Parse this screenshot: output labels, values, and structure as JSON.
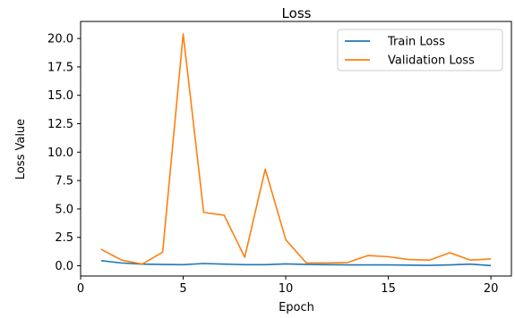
{
  "chart_data": {
    "type": "line",
    "title": "Loss",
    "xlabel": "Epoch",
    "ylabel": "Loss Value",
    "xlim": [
      0,
      21
    ],
    "ylim": [
      -0.9,
      21.5
    ],
    "xticks": [
      0,
      5,
      10,
      15,
      20
    ],
    "yticks": [
      0.0,
      2.5,
      5.0,
      7.5,
      10.0,
      12.5,
      15.0,
      17.5,
      20.0
    ],
    "xtick_labels": [
      "0",
      "5",
      "10",
      "15",
      "20"
    ],
    "ytick_labels": [
      "0.0",
      "2.5",
      "5.0",
      "7.5",
      "10.0",
      "12.5",
      "15.0",
      "17.5",
      "20.0"
    ],
    "grid": false,
    "legend_position": "top-right",
    "x": [
      1,
      2,
      3,
      4,
      5,
      6,
      7,
      8,
      9,
      10,
      11,
      12,
      13,
      14,
      15,
      16,
      17,
      18,
      19,
      20
    ],
    "series": [
      {
        "name": "Train Loss",
        "color": "#1f77b4",
        "values": [
          0.45,
          0.25,
          0.15,
          0.12,
          0.1,
          0.2,
          0.15,
          0.1,
          0.1,
          0.17,
          0.12,
          0.1,
          0.08,
          0.08,
          0.08,
          0.06,
          0.04,
          0.08,
          0.15,
          0.02
        ]
      },
      {
        "name": "Validation Loss",
        "color": "#ff7f0e",
        "values": [
          1.45,
          0.5,
          0.15,
          1.2,
          20.4,
          4.7,
          4.45,
          0.75,
          8.5,
          2.3,
          0.25,
          0.25,
          0.28,
          0.9,
          0.8,
          0.55,
          0.5,
          1.15,
          0.5,
          0.6
        ]
      }
    ]
  }
}
